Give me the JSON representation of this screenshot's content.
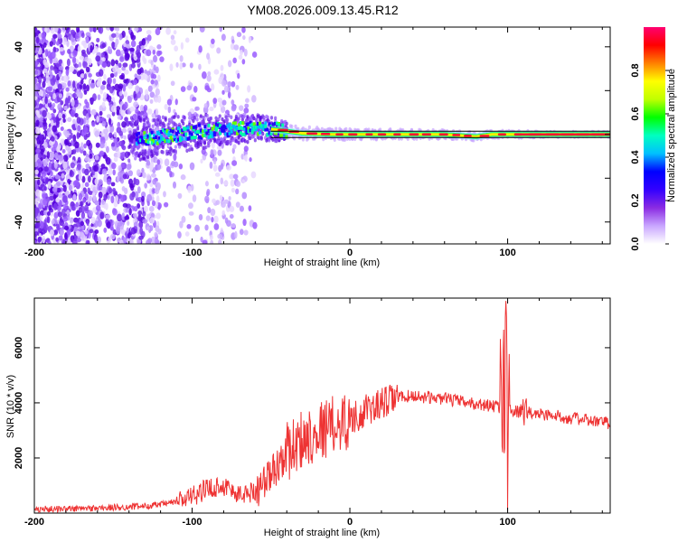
{
  "title": "YM08.2026.009.13.45.R12",
  "chart_data": [
    {
      "type": "heatmap",
      "xlabel": "Height of straight line (km)",
      "ylabel": "Frequency (Hz)",
      "xlim": [
        -200,
        165
      ],
      "ylim": [
        -50,
        49
      ],
      "xticks": [
        -200,
        -100,
        0,
        100
      ],
      "yticks": [
        -40,
        -20,
        0,
        20,
        40
      ],
      "colorbar": {
        "label": "Normalized spectral amplitude",
        "range": [
          0,
          1
        ],
        "ticks": [
          0.0,
          0.2,
          0.4,
          0.6,
          0.8
        ],
        "tick_labels": [
          "0.0",
          "0.2",
          "0.4",
          "0.6",
          "0.8"
        ],
        "colors": [
          "#ffffff",
          "#c9a6ff",
          "#8a2be2",
          "#3300ff",
          "#0000ff",
          "#00c0ff",
          "#00ffc0",
          "#00ff00",
          "#c0ff00",
          "#ffff00",
          "#ff8000",
          "#ff0000",
          "#ff0070"
        ]
      },
      "ridge": {
        "description_free": true,
        "points": [
          [
            -130,
            -2
          ],
          [
            -100,
            1
          ],
          [
            -80,
            2
          ],
          [
            -60,
            3
          ],
          [
            -45,
            2
          ],
          [
            -30,
            0.5
          ],
          [
            -10,
            0
          ],
          [
            20,
            0
          ],
          [
            60,
            0
          ],
          [
            80,
            -1
          ],
          [
            90,
            0
          ],
          [
            100,
            0
          ],
          [
            165,
            0
          ]
        ]
      }
    },
    {
      "type": "line",
      "xlabel": "Height of straight line (km)",
      "ylabel": "SNR (10 * v/v)",
      "xlim": [
        -200,
        165
      ],
      "ylim": [
        0,
        7800
      ],
      "xticks": [
        -200,
        -100,
        0,
        100
      ],
      "yticks": [
        2000,
        4000,
        6000
      ],
      "color": "#ee3333",
      "series": [
        {
          "name": "SNR",
          "x": [
            -200,
            -180,
            -160,
            -140,
            -120,
            -110,
            -100,
            -90,
            -80,
            -70,
            -60,
            -50,
            -40,
            -30,
            -20,
            -10,
            0,
            10,
            20,
            30,
            40,
            60,
            80,
            90,
            95,
            98,
            100,
            105,
            110,
            120,
            140,
            165
          ],
          "y": [
            150,
            150,
            180,
            220,
            300,
            420,
            600,
            900,
            1000,
            650,
            800,
            1400,
            2200,
            2700,
            3000,
            3200,
            3400,
            3700,
            3950,
            4200,
            4250,
            4150,
            3950,
            3900,
            3850,
            3500,
            3700,
            3700,
            3650,
            3600,
            3450,
            3250
          ]
        }
      ]
    }
  ]
}
